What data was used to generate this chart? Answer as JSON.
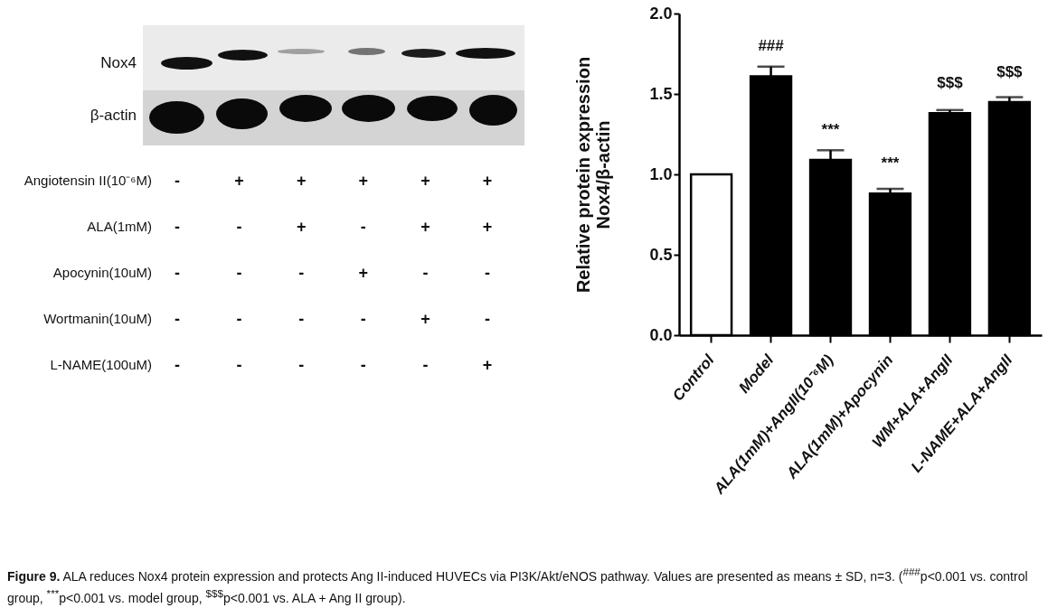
{
  "chart_data": [
    {
      "type": "other",
      "annotations": [
        "Nox4",
        "β-actin"
      ],
      "y_categories": [
        "Angiotensin II(10⁻⁶M)",
        "ALA(1mM)",
        "Apocynin(10uM)",
        "Wortmanin(10uM)",
        "L-NAME(100uM)"
      ],
      "cell_labels": [
        [
          "-",
          "+",
          "+",
          "+",
          "+",
          "+"
        ],
        [
          "-",
          "-",
          "+",
          "-",
          "+",
          "+"
        ],
        [
          "-",
          "-",
          "-",
          "+",
          "-",
          "-"
        ],
        [
          "-",
          "-",
          "-",
          "-",
          "+",
          "-"
        ],
        [
          "-",
          "-",
          "-",
          "-",
          "-",
          "+"
        ]
      ]
    },
    {
      "type": "bar",
      "categories": [
        "Control",
        "Model",
        "ALA(1mM)+AngII(10⁻⁶M)",
        "ALA(1mM)+Apocynin",
        "WM+ALA+AngII",
        "L-NAME+ALA+AngII"
      ],
      "values": [
        1.0,
        1.61,
        1.09,
        0.88,
        1.38,
        1.45
      ],
      "errors": [
        null,
        0.06,
        0.06,
        0.03,
        0.02,
        0.03
      ],
      "colors": [
        "#ffffff",
        "#000000",
        "#000000",
        "#000000",
        "#000000",
        "#000000"
      ],
      "ylabel": "Relative protein expression\nNox4/β-actin",
      "ylim": [
        0,
        2
      ],
      "yticks": [
        {
          "value": 0,
          "label": "0.0"
        },
        {
          "value": 0.5,
          "label": "0.5"
        },
        {
          "value": 1,
          "label": "1.0"
        },
        {
          "value": 1.5,
          "label": "1.5"
        },
        {
          "value": 2,
          "label": "2.0"
        }
      ],
      "annotations": [
        {
          "text": "###",
          "x": "Model",
          "y": 1.61
        },
        {
          "text": "***",
          "x": "ALA(1mM)+AngII(10⁻⁶M)",
          "y": 1.09
        },
        {
          "text": "***",
          "x": "ALA(1mM)+Apocynin",
          "y": 0.88
        },
        {
          "text": "$$$",
          "x": "WM+ALA+AngII",
          "y": 1.38
        },
        {
          "text": "$$$",
          "x": "L-NAME+ALA+AngII",
          "y": 1.45
        },
        "Figure 9. ALA reduces Nox4 protein expression and protects Ang II-induced HUVECs via PI3K/Akt/eNOS pathway. Values are presented as means ± SD, n=3. ($^{###}$p<0.001 vs. control group, $^{***}$p<0.001 vs. model group, $^{$$$}$p<0.001 vs. ALA + Ang II group)."
      ]
    }
  ]
}
